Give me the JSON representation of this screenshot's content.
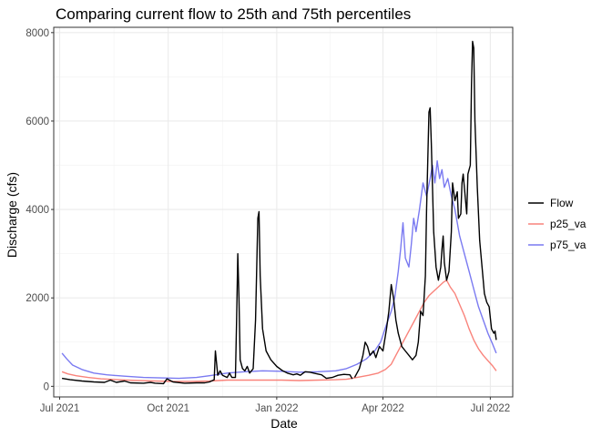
{
  "chart_data": {
    "type": "line",
    "title": "Comparing current flow to 25th and 75th percentiles",
    "xlabel": "Date",
    "ylabel": "Discharge (cfs)",
    "xlim": [
      "2021-06-26",
      "2022-07-20"
    ],
    "ylim": [
      -240,
      8120
    ],
    "grid": true,
    "legend_position": "right",
    "x_ticks": [
      {
        "date": "2021-07-01",
        "label": "Jul 2021"
      },
      {
        "date": "2021-10-01",
        "label": "Oct 2021"
      },
      {
        "date": "2022-01-01",
        "label": "Jan 2022"
      },
      {
        "date": "2022-04-01",
        "label": "Apr 2022"
      },
      {
        "date": "2022-07-01",
        "label": "Jul 2022"
      }
    ],
    "y_ticks": [
      0,
      2000,
      4000,
      6000,
      8000
    ],
    "series": [
      {
        "name": "Flow",
        "color": "#000000",
        "opacity": 1,
        "segments": [
          [
            [
              "2021-07-03",
              180
            ],
            [
              "2021-07-10",
              150
            ],
            [
              "2021-07-20",
              120
            ],
            [
              "2021-07-30",
              100
            ],
            [
              "2021-08-08",
              90
            ],
            [
              "2021-08-13",
              140
            ],
            [
              "2021-08-18",
              90
            ],
            [
              "2021-08-25",
              120
            ],
            [
              "2021-08-30",
              80
            ],
            [
              "2021-09-10",
              70
            ],
            [
              "2021-09-16",
              90
            ],
            [
              "2021-09-20",
              70
            ],
            [
              "2021-09-27",
              60
            ],
            [
              "2021-09-30",
              170
            ],
            [
              "2021-10-05",
              100
            ],
            [
              "2021-10-15",
              70
            ],
            [
              "2021-10-25",
              80
            ],
            [
              "2021-11-01",
              80
            ],
            [
              "2021-11-05",
              100
            ],
            [
              "2021-11-09",
              150
            ],
            [
              "2021-11-10",
              800
            ],
            [
              "2021-11-12",
              250
            ],
            [
              "2021-11-14",
              350
            ],
            [
              "2021-11-16",
              250
            ],
            [
              "2021-11-20",
              200
            ],
            [
              "2021-11-22",
              300
            ],
            [
              "2021-11-24",
              200
            ],
            [
              "2021-11-27",
              200
            ],
            [
              "2021-11-28",
              1500
            ],
            [
              "2021-11-29",
              3000
            ],
            [
              "2021-11-30",
              2000
            ],
            [
              "2021-12-01",
              600
            ],
            [
              "2021-12-03",
              400
            ],
            [
              "2021-12-05",
              350
            ],
            [
              "2021-12-07",
              450
            ],
            [
              "2021-12-09",
              300
            ],
            [
              "2021-12-12",
              400
            ],
            [
              "2021-12-14",
              1500
            ],
            [
              "2021-12-16",
              3800
            ],
            [
              "2021-12-17",
              3950
            ],
            [
              "2021-12-18",
              2500
            ],
            [
              "2021-12-20",
              1300
            ],
            [
              "2021-12-23",
              800
            ],
            [
              "2021-12-27",
              600
            ],
            [
              "2022-01-01",
              450
            ],
            [
              "2022-01-06",
              350
            ],
            [
              "2022-01-10",
              300
            ],
            [
              "2022-01-15",
              260
            ],
            [
              "2022-01-18",
              280
            ],
            [
              "2022-01-21",
              250
            ],
            [
              "2022-01-25",
              330
            ],
            [
              "2022-01-29",
              320
            ],
            [
              "2022-02-03",
              290
            ],
            [
              "2022-02-08",
              260
            ],
            [
              "2022-02-12",
              180
            ],
            [
              "2022-02-17",
              200
            ],
            [
              "2022-02-22",
              250
            ],
            [
              "2022-02-27",
              270
            ],
            [
              "2022-03-04",
              260
            ],
            [
              "2022-03-06",
              170
            ]
          ],
          [
            [
              "2022-03-08",
              200
            ],
            [
              "2022-03-12",
              400
            ],
            [
              "2022-03-15",
              700
            ],
            [
              "2022-03-17",
              1000
            ],
            [
              "2022-03-19",
              900
            ],
            [
              "2022-03-21",
              700
            ],
            [
              "2022-03-24",
              800
            ],
            [
              "2022-03-26",
              650
            ],
            [
              "2022-03-29",
              900
            ],
            [
              "2022-04-01",
              800
            ],
            [
              "2022-04-04",
              1300
            ],
            [
              "2022-04-06",
              1700
            ],
            [
              "2022-04-08",
              2300
            ],
            [
              "2022-04-10",
              2000
            ],
            [
              "2022-04-12",
              1500
            ],
            [
              "2022-04-14",
              1200
            ],
            [
              "2022-04-17",
              900
            ],
            [
              "2022-04-20",
              800
            ],
            [
              "2022-04-23",
              700
            ],
            [
              "2022-04-26",
              600
            ],
            [
              "2022-04-29",
              700
            ],
            [
              "2022-05-01",
              1000
            ],
            [
              "2022-05-03",
              1700
            ],
            [
              "2022-05-05",
              1600
            ],
            [
              "2022-05-07",
              2500
            ],
            [
              "2022-05-08",
              4000
            ],
            [
              "2022-05-10",
              6200
            ],
            [
              "2022-05-11",
              6300
            ],
            [
              "2022-05-12",
              5500
            ],
            [
              "2022-05-14",
              3500
            ],
            [
              "2022-05-16",
              2700
            ],
            [
              "2022-05-18",
              2400
            ],
            [
              "2022-05-20",
              2700
            ],
            [
              "2022-05-21",
              3100
            ],
            [
              "2022-05-22",
              3400
            ],
            [
              "2022-05-23",
              2800
            ],
            [
              "2022-05-25",
              2400
            ],
            [
              "2022-05-27",
              2600
            ],
            [
              "2022-05-29",
              3500
            ],
            [
              "2022-05-30",
              4600
            ],
            [
              "2022-06-01",
              4200
            ],
            [
              "2022-06-03",
              4400
            ],
            [
              "2022-06-04",
              3800
            ],
            [
              "2022-06-06",
              3900
            ],
            [
              "2022-06-07",
              4600
            ],
            [
              "2022-06-08",
              4800
            ],
            [
              "2022-06-10",
              4200
            ],
            [
              "2022-06-11",
              3900
            ],
            [
              "2022-06-12",
              4800
            ],
            [
              "2022-06-14",
              5000
            ],
            [
              "2022-06-15",
              6800
            ],
            [
              "2022-06-16",
              7800
            ],
            [
              "2022-06-17",
              7650
            ],
            [
              "2022-06-18",
              6000
            ],
            [
              "2022-06-20",
              4500
            ],
            [
              "2022-06-22",
              3300
            ],
            [
              "2022-06-24",
              2700
            ],
            [
              "2022-06-26",
              2100
            ],
            [
              "2022-06-28",
              1900
            ],
            [
              "2022-06-30",
              1800
            ],
            [
              "2022-07-02",
              1300
            ],
            [
              "2022-07-04",
              1200
            ],
            [
              "2022-07-05",
              1250
            ],
            [
              "2022-07-06",
              1050
            ]
          ]
        ]
      },
      {
        "name": "p25_va",
        "color": "#f8766d",
        "opacity": 0.9,
        "segments": [
          [
            [
              "2021-07-03",
              330
            ],
            [
              "2021-07-08",
              280
            ],
            [
              "2021-07-15",
              240
            ],
            [
              "2021-07-25",
              200
            ],
            [
              "2021-08-05",
              170
            ],
            [
              "2021-08-20",
              150
            ],
            [
              "2021-09-05",
              130
            ],
            [
              "2021-09-20",
              120
            ],
            [
              "2021-10-05",
              110
            ],
            [
              "2021-10-20",
              110
            ],
            [
              "2021-11-05",
              120
            ],
            [
              "2021-11-20",
              140
            ],
            [
              "2021-12-05",
              140
            ],
            [
              "2021-12-20",
              140
            ],
            [
              "2022-01-05",
              140
            ],
            [
              "2022-01-20",
              130
            ],
            [
              "2022-02-05",
              140
            ],
            [
              "2022-02-20",
              150
            ],
            [
              "2022-03-01",
              160
            ],
            [
              "2022-03-10",
              200
            ],
            [
              "2022-03-20",
              250
            ],
            [
              "2022-03-28",
              300
            ],
            [
              "2022-04-03",
              380
            ],
            [
              "2022-04-08",
              500
            ],
            [
              "2022-04-12",
              700
            ],
            [
              "2022-04-16",
              900
            ],
            [
              "2022-04-20",
              1100
            ],
            [
              "2022-04-24",
              1300
            ],
            [
              "2022-04-28",
              1500
            ],
            [
              "2022-05-02",
              1700
            ],
            [
              "2022-05-06",
              1900
            ],
            [
              "2022-05-10",
              2050
            ],
            [
              "2022-05-14",
              2150
            ],
            [
              "2022-05-18",
              2250
            ],
            [
              "2022-05-22",
              2350
            ],
            [
              "2022-05-25",
              2400
            ],
            [
              "2022-05-28",
              2250
            ],
            [
              "2022-06-01",
              2100
            ],
            [
              "2022-06-05",
              1850
            ],
            [
              "2022-06-09",
              1600
            ],
            [
              "2022-06-13",
              1300
            ],
            [
              "2022-06-17",
              1050
            ],
            [
              "2022-06-21",
              850
            ],
            [
              "2022-06-25",
              700
            ],
            [
              "2022-06-29",
              580
            ],
            [
              "2022-07-03",
              460
            ],
            [
              "2022-07-06",
              350
            ]
          ]
        ]
      },
      {
        "name": "p75_va",
        "color": "#6b6bef",
        "opacity": 0.9,
        "segments": [
          [
            [
              "2021-07-03",
              750
            ],
            [
              "2021-07-07",
              620
            ],
            [
              "2021-07-12",
              480
            ],
            [
              "2021-07-20",
              380
            ],
            [
              "2021-07-30",
              300
            ],
            [
              "2021-08-10",
              260
            ],
            [
              "2021-08-25",
              230
            ],
            [
              "2021-09-10",
              200
            ],
            [
              "2021-09-25",
              190
            ],
            [
              "2021-10-10",
              180
            ],
            [
              "2021-10-25",
              200
            ],
            [
              "2021-11-05",
              240
            ],
            [
              "2021-11-20",
              300
            ],
            [
              "2021-12-05",
              330
            ],
            [
              "2021-12-20",
              350
            ],
            [
              "2022-01-05",
              340
            ],
            [
              "2022-01-20",
              320
            ],
            [
              "2022-02-05",
              330
            ],
            [
              "2022-02-20",
              350
            ],
            [
              "2022-03-01",
              400
            ],
            [
              "2022-03-10",
              500
            ],
            [
              "2022-03-18",
              620
            ],
            [
              "2022-03-25",
              800
            ],
            [
              "2022-03-30",
              1000
            ],
            [
              "2022-04-04",
              1400
            ],
            [
              "2022-04-08",
              1700
            ],
            [
              "2022-04-11",
              2000
            ],
            [
              "2022-04-14",
              2600
            ],
            [
              "2022-04-16",
              3100
            ],
            [
              "2022-04-18",
              3700
            ],
            [
              "2022-04-20",
              2900
            ],
            [
              "2022-04-23",
              2700
            ],
            [
              "2022-04-25",
              3200
            ],
            [
              "2022-04-27",
              3800
            ],
            [
              "2022-04-29",
              3500
            ],
            [
              "2022-05-02",
              4000
            ],
            [
              "2022-05-05",
              4600
            ],
            [
              "2022-05-08",
              4300
            ],
            [
              "2022-05-11",
              4700
            ],
            [
              "2022-05-13",
              5000
            ],
            [
              "2022-05-15",
              4600
            ],
            [
              "2022-05-17",
              5100
            ],
            [
              "2022-05-19",
              4700
            ],
            [
              "2022-05-21",
              4900
            ],
            [
              "2022-05-23",
              4500
            ],
            [
              "2022-05-26",
              4700
            ],
            [
              "2022-05-29",
              4300
            ],
            [
              "2022-06-01",
              4000
            ],
            [
              "2022-06-05",
              3400
            ],
            [
              "2022-06-09",
              3000
            ],
            [
              "2022-06-13",
              2600
            ],
            [
              "2022-06-17",
              2200
            ],
            [
              "2022-06-21",
              1800
            ],
            [
              "2022-06-25",
              1500
            ],
            [
              "2022-06-29",
              1200
            ],
            [
              "2022-07-03",
              950
            ],
            [
              "2022-07-06",
              750
            ]
          ]
        ]
      }
    ]
  }
}
